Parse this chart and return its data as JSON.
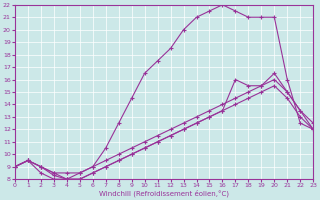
{
  "xlabel": "Windchill (Refroidissement éolien,°C)",
  "xlim": [
    0,
    23
  ],
  "ylim": [
    8,
    22
  ],
  "yticks": [
    8,
    9,
    10,
    11,
    12,
    13,
    14,
    15,
    16,
    17,
    18,
    19,
    20,
    21,
    22
  ],
  "xticks": [
    0,
    1,
    2,
    3,
    4,
    5,
    6,
    7,
    8,
    9,
    10,
    11,
    12,
    13,
    14,
    15,
    16,
    17,
    18,
    19,
    20,
    21,
    22,
    23
  ],
  "bg_color": "#cce8e8",
  "line_color": "#993399",
  "line_width": 0.8,
  "marker": "+",
  "marker_size": 3,
  "grid_color": "#ffffff",
  "curves": [
    {
      "x": [
        0,
        1,
        2,
        3,
        4,
        5,
        6,
        7,
        8,
        9,
        10,
        11,
        12,
        13,
        14,
        15,
        16,
        17,
        18,
        19,
        20,
        21,
        22,
        23
      ],
      "y": [
        9,
        9.5,
        9,
        8.3,
        8.0,
        8.5,
        9.0,
        10.5,
        12.5,
        14.5,
        16.5,
        17.5,
        18.5,
        20.0,
        21.0,
        21.5,
        22.0,
        21.5,
        21.0,
        21.0,
        21.0,
        16.0,
        12.5,
        12.0
      ]
    },
    {
      "x": [
        0,
        1,
        2,
        3,
        4,
        5,
        6,
        7,
        8,
        9,
        10,
        11,
        12,
        13,
        14,
        15,
        16,
        17,
        18,
        19,
        20,
        21,
        22,
        23
      ],
      "y": [
        9,
        9.5,
        8.5,
        8.0,
        8.0,
        8.0,
        8.5,
        9.0,
        9.5,
        10.0,
        10.5,
        11.0,
        11.5,
        12.0,
        12.5,
        13.0,
        13.5,
        16.0,
        15.5,
        15.5,
        16.5,
        15.0,
        13.5,
        12.5
      ]
    },
    {
      "x": [
        0,
        1,
        2,
        3,
        4,
        5,
        6,
        7,
        8,
        9,
        10,
        11,
        12,
        13,
        14,
        15,
        16,
        17,
        18,
        19,
        20,
        21,
        22,
        23
      ],
      "y": [
        9,
        9.5,
        9.0,
        8.5,
        8.5,
        8.5,
        9.0,
        9.5,
        10.0,
        10.5,
        11.0,
        11.5,
        12.0,
        12.5,
        13.0,
        13.5,
        14.0,
        14.5,
        15.0,
        15.5,
        16.0,
        15.0,
        13.5,
        12.0
      ]
    },
    {
      "x": [
        0,
        1,
        2,
        3,
        4,
        5,
        6,
        7,
        8,
        9,
        10,
        11,
        12,
        13,
        14,
        15,
        16,
        17,
        18,
        19,
        20,
        21,
        22,
        23
      ],
      "y": [
        9,
        9.5,
        9.0,
        8.5,
        8.0,
        8.0,
        8.5,
        9.0,
        9.5,
        10.0,
        10.5,
        11.0,
        11.5,
        12.0,
        12.5,
        13.0,
        13.5,
        14.0,
        14.5,
        15.0,
        15.5,
        14.5,
        13.0,
        12.0
      ]
    }
  ]
}
